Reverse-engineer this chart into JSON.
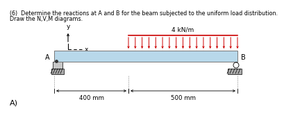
{
  "title_line1": "(6)  Determine the reactions at A and B for the beam subjected to the uniform load distribution.",
  "title_line2": "Draw the N,V,M diagrams.",
  "subtitle": "A)",
  "load_label": "4 kN/m",
  "dim_left": "400 mm",
  "dim_right": "500 mm",
  "beam_color": "#b8d8ea",
  "beam_edge_color": "#777777",
  "load_color": "#cc0000",
  "support_fill": "#c8c8c8",
  "ground_fill": "#aaaaaa",
  "background_color": "#ffffff",
  "title_fontsize": 5.8,
  "label_fontsize": 6.5,
  "dim_fontsize": 6.2,
  "n_load_arrows": 17
}
